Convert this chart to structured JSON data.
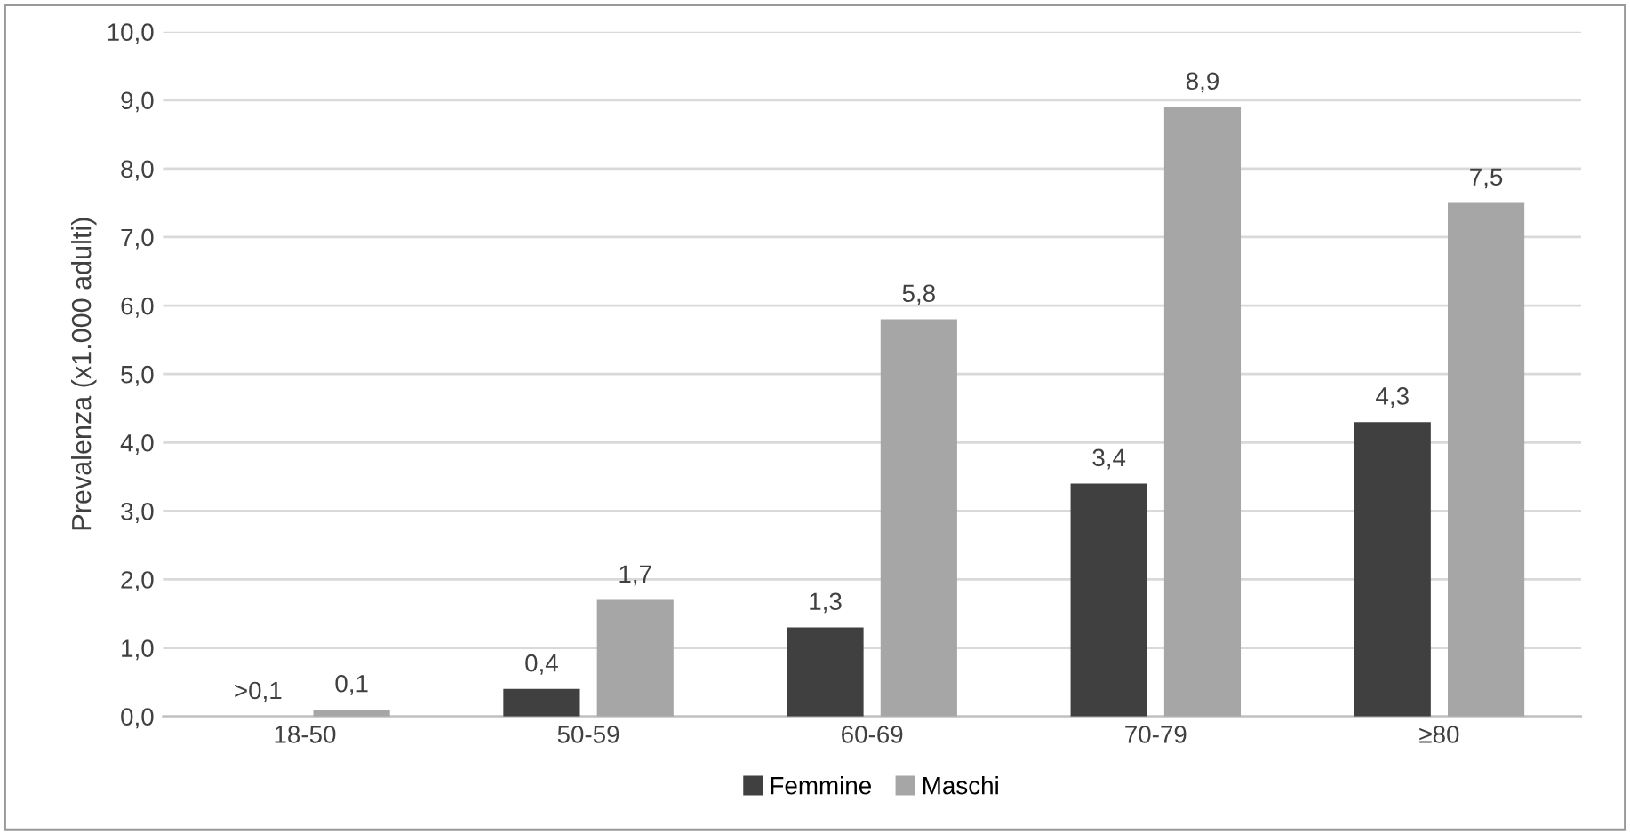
{
  "chart_data": {
    "type": "bar",
    "ylabel": "Prevalenza (x1.000 adulti)",
    "categories": [
      "18-50",
      "50-59",
      "60-69",
      "70-79",
      "≥80"
    ],
    "series": [
      {
        "name": "Femmine",
        "color": "#404040",
        "values": [
          null,
          0.4,
          1.3,
          3.4,
          4.3
        ],
        "value_labels": [
          null,
          "0,4",
          "1,3",
          "3,4",
          "4,3"
        ]
      },
      {
        "name": "Maschi",
        "color": "#a6a6a6",
        "values": [
          0.1,
          1.7,
          5.8,
          8.9,
          7.5
        ],
        "value_labels": [
          "0,1",
          "1,7",
          "5,8",
          "8,9",
          "7,5"
        ]
      }
    ],
    "ylim": [
      0,
      10
    ],
    "yticks": [
      {
        "value": 0,
        "label": "0,0"
      },
      {
        "value": 1,
        "label": "1,0"
      },
      {
        "value": 2,
        "label": "2,0"
      },
      {
        "value": 3,
        "label": "3,0"
      },
      {
        "value": 4,
        "label": "4,0"
      },
      {
        "value": 5,
        "label": "5,0"
      },
      {
        "value": 6,
        "label": "6,0"
      },
      {
        "value": 7,
        "label": "7,0"
      },
      {
        "value": 8,
        "label": "8,0"
      },
      {
        "value": 9,
        "label": "9,0"
      },
      {
        "value": 10,
        "label": "10,0"
      }
    ],
    "annotations": [
      {
        "text": ">0,1",
        "x": "18-50",
        "y": 0
      }
    ],
    "grid": "y",
    "legend": "bottom"
  }
}
